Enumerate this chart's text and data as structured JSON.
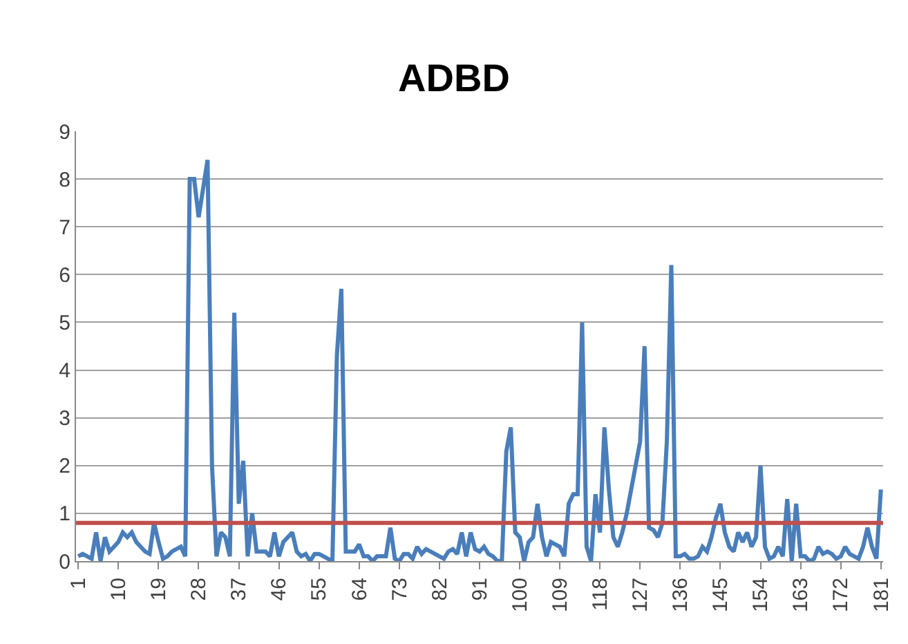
{
  "chart_data": {
    "type": "line",
    "title": "ADBD",
    "x": [
      1,
      2,
      3,
      4,
      5,
      6,
      7,
      8,
      9,
      10,
      11,
      12,
      13,
      14,
      15,
      16,
      17,
      18,
      19,
      20,
      21,
      22,
      23,
      24,
      25,
      26,
      27,
      28,
      29,
      30,
      31,
      32,
      33,
      34,
      35,
      36,
      37,
      38,
      39,
      40,
      41,
      42,
      43,
      44,
      45,
      46,
      47,
      48,
      49,
      50,
      51,
      52,
      53,
      54,
      55,
      56,
      57,
      58,
      59,
      60,
      61,
      62,
      63,
      64,
      65,
      66,
      67,
      68,
      69,
      70,
      71,
      72,
      73,
      74,
      75,
      76,
      77,
      78,
      79,
      80,
      81,
      82,
      83,
      84,
      85,
      86,
      87,
      88,
      89,
      90,
      91,
      92,
      93,
      94,
      95,
      96,
      97,
      98,
      99,
      100,
      101,
      102,
      103,
      104,
      105,
      106,
      107,
      108,
      109,
      110,
      111,
      112,
      113,
      114,
      115,
      116,
      117,
      118,
      119,
      120,
      121,
      122,
      123,
      124,
      125,
      126,
      127,
      128,
      129,
      130,
      131,
      132,
      133,
      134,
      135,
      136,
      137,
      138,
      139,
      140,
      141,
      142,
      143,
      144,
      145,
      146,
      147,
      148,
      149,
      150,
      151,
      152,
      153,
      154,
      155,
      156,
      157,
      158,
      159,
      160,
      161,
      162,
      163,
      164,
      165,
      166,
      167,
      168,
      169,
      170,
      171,
      172,
      173,
      174,
      175,
      176,
      177,
      178,
      179,
      180,
      181
    ],
    "series": [
      {
        "color": "#4a7ebb",
        "values": [
          0.1,
          0.15,
          0.1,
          0.05,
          0.6,
          0.0,
          0.5,
          0.2,
          0.3,
          0.4,
          0.6,
          0.5,
          0.6,
          0.4,
          0.3,
          0.2,
          0.15,
          0.8,
          0.4,
          0.05,
          0.1,
          0.2,
          0.25,
          0.3,
          0.1,
          8.0,
          8.0,
          7.2,
          7.8,
          8.4,
          2.0,
          0.1,
          0.6,
          0.5,
          0.1,
          5.2,
          1.2,
          2.1,
          0.1,
          1.0,
          0.2,
          0.2,
          0.2,
          0.1,
          0.6,
          0.1,
          0.4,
          0.5,
          0.6,
          0.2,
          0.1,
          0.15,
          0.0,
          0.15,
          0.15,
          0.1,
          0.05,
          0.0,
          4.3,
          5.7,
          0.2,
          0.2,
          0.2,
          0.35,
          0.1,
          0.1,
          0.0,
          0.1,
          0.1,
          0.1,
          0.7,
          0.05,
          0.0,
          0.15,
          0.15,
          0.05,
          0.3,
          0.15,
          0.25,
          0.2,
          0.15,
          0.1,
          0.05,
          0.2,
          0.25,
          0.15,
          0.6,
          0.1,
          0.6,
          0.25,
          0.2,
          0.3,
          0.15,
          0.1,
          0.0,
          0.0,
          2.3,
          2.8,
          0.6,
          0.5,
          0.0,
          0.4,
          0.5,
          1.2,
          0.5,
          0.1,
          0.4,
          0.35,
          0.3,
          0.1,
          1.2,
          1.4,
          1.4,
          5.0,
          0.3,
          0.0,
          1.4,
          0.6,
          2.8,
          1.5,
          0.5,
          0.3,
          0.6,
          1.0,
          1.5,
          2.0,
          2.5,
          4.5,
          0.7,
          0.65,
          0.5,
          0.8,
          2.5,
          6.2,
          0.1,
          0.1,
          0.15,
          0.05,
          0.05,
          0.1,
          0.3,
          0.2,
          0.5,
          0.9,
          1.2,
          0.6,
          0.3,
          0.2,
          0.6,
          0.4,
          0.6,
          0.3,
          0.5,
          2.0,
          0.3,
          0.05,
          0.1,
          0.3,
          0.1,
          1.3,
          0.0,
          1.2,
          0.1,
          0.1,
          0.0,
          0.05,
          0.3,
          0.15,
          0.2,
          0.15,
          0.05,
          0.1,
          0.3,
          0.15,
          0.1,
          0.05,
          0.3,
          0.7,
          0.3,
          0.05,
          1.5
        ]
      }
    ],
    "xlim": [
      0.5,
      181.5
    ],
    "xticks": [
      1,
      10,
      19,
      28,
      37,
      46,
      55,
      64,
      73,
      82,
      91,
      100,
      109,
      118,
      127,
      136,
      145,
      154,
      163,
      172,
      181
    ],
    "ylim": [
      0,
      9
    ],
    "yticks": [
      0,
      1,
      2,
      3,
      4,
      5,
      6,
      7,
      8,
      9
    ],
    "ref_lines": [
      {
        "axis": "y",
        "value": 0.8,
        "color": "#c0504d"
      }
    ],
    "grid": "y",
    "marker": "none",
    "line_style": "solid"
  }
}
